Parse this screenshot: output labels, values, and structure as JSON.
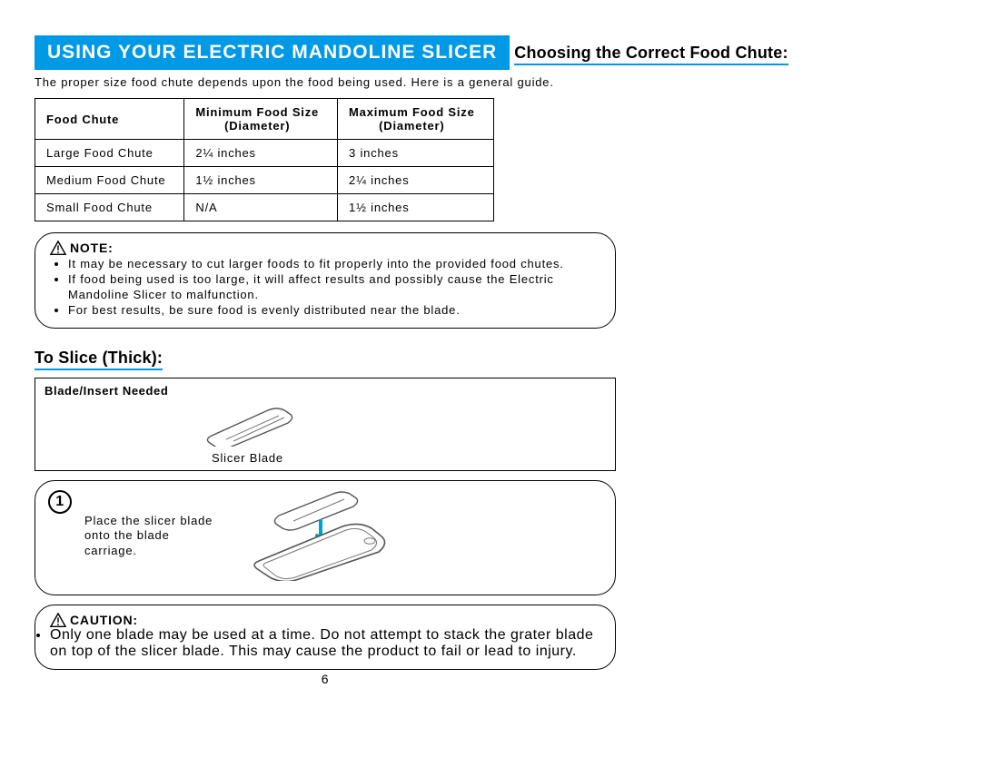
{
  "banner": "USING YOUR ELECTRIC MANDOLINE SLICER",
  "section1": {
    "title": "Choosing the Correct Food Chute:",
    "intro": "The proper size food chute depends upon the food being used. Here is a general guide.",
    "table": {
      "headers": [
        "Food Chute",
        "Minimum Food Size (Diameter)",
        "Maximum Food Size (Diameter)"
      ],
      "rows": [
        [
          "Large Food Chute",
          "2¼ inches",
          "3 inches"
        ],
        [
          "Medium Food Chute",
          "1½ inches",
          "2¼ inches"
        ],
        [
          "Small Food Chute",
          "N/A",
          "1½ inches"
        ]
      ]
    }
  },
  "note": {
    "label": "NOTE:",
    "items": [
      "It may be necessary to cut larger foods to fit properly into the provided food chutes.",
      "If food being used is too large, it will affect results and possibly cause the Electric Mandoline Slicer to malfunction.",
      "For best results, be sure food is evenly distributed near the blade."
    ]
  },
  "section2": {
    "title": "To Slice (Thick):",
    "blade_header": "Blade/Insert Needed",
    "blade_caption": "Slicer Blade"
  },
  "step": {
    "number": "1",
    "text": "Place the slicer blade onto the blade carriage."
  },
  "caution": {
    "label": "CAUTION:",
    "items": [
      "Only one blade may be used at a time. Do not attempt to stack the grater blade on top of the slicer blade. This may cause the product to fail or lead to injury."
    ]
  },
  "page_number": "6",
  "colors": {
    "accent": "#0099e6",
    "arrow": "#009fd6",
    "text": "#000000",
    "bg": "#ffffff"
  }
}
